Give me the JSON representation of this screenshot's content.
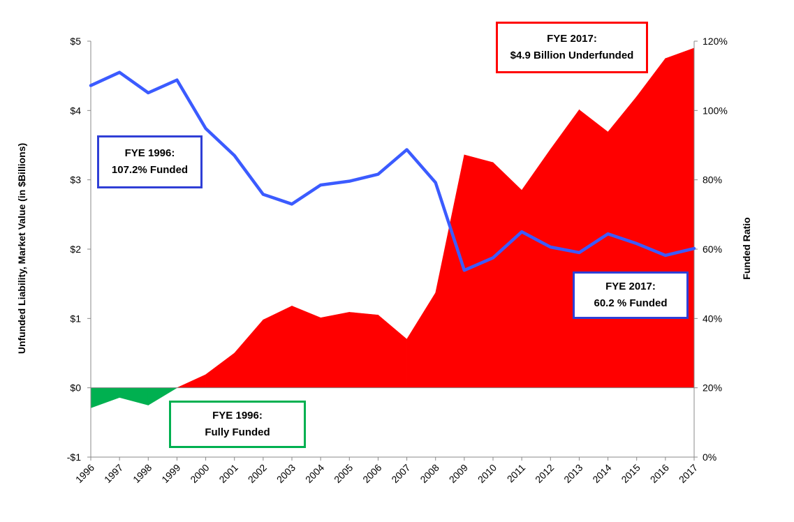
{
  "chart_data": {
    "type": "area+line",
    "categories": [
      "1996",
      "1997",
      "1998",
      "1999",
      "2000",
      "2001",
      "2002",
      "2003",
      "2004",
      "2005",
      "2006",
      "2007",
      "2008",
      "2009",
      "2010",
      "2011",
      "2012",
      "2013",
      "2014",
      "2015",
      "2016",
      "2017"
    ],
    "series": [
      {
        "name": "Unfunded Liability, Market Value (in $Billions)",
        "type": "area",
        "axis": "left",
        "values": [
          -0.29,
          -0.14,
          -0.25,
          0.0,
          0.19,
          0.5,
          0.98,
          1.18,
          1.01,
          1.09,
          1.05,
          0.7,
          1.37,
          3.36,
          3.25,
          2.85,
          3.44,
          4.01,
          3.69,
          4.2,
          4.75,
          4.9
        ],
        "positive_color": "#ff0000",
        "negative_color": "#00b050"
      },
      {
        "name": "Funded Ratio",
        "type": "line",
        "axis": "right",
        "values": [
          107.2,
          111.0,
          105.1,
          108.8,
          94.8,
          87.0,
          75.8,
          73.0,
          78.5,
          79.6,
          81.6,
          88.7,
          79.2,
          53.9,
          57.5,
          65.0,
          60.6,
          59.0,
          64.4,
          61.6,
          58.2,
          60.2
        ],
        "color": "#3b5bff"
      }
    ],
    "left_axis": {
      "title": "Unfunded Liability, Market Value  (in $Billions)",
      "min": -1,
      "max": 5,
      "ticks": [
        -1,
        0,
        1,
        2,
        3,
        4,
        5
      ],
      "tick_labels": [
        "-$1",
        "$0",
        "$1",
        "$2",
        "$3",
        "$4",
        "$5"
      ]
    },
    "right_axis": {
      "title": "Funded Ratio",
      "min": 0,
      "max": 120,
      "ticks": [
        0,
        20,
        40,
        60,
        80,
        100,
        120
      ],
      "tick_labels": [
        "0%",
        "20%",
        "40%",
        "60%",
        "80%",
        "100%",
        "120%"
      ]
    },
    "annotations": [
      {
        "id": "fye1996-funded",
        "lines": [
          "FYE 1996:",
          "107.2% Funded"
        ],
        "border_color": "#2f3fd6"
      },
      {
        "id": "fye1996-fully",
        "lines": [
          "FYE 1996:",
          "Fully Funded"
        ],
        "border_color": "#00b050"
      },
      {
        "id": "fye2017-under",
        "lines": [
          "FYE 2017:",
          "$4.9 Billion Underfunded"
        ],
        "border_color": "#ff0000"
      },
      {
        "id": "fye2017-funded",
        "lines": [
          "FYE 2017:",
          "60.2 % Funded"
        ],
        "border_color": "#2f3fd6"
      }
    ]
  }
}
